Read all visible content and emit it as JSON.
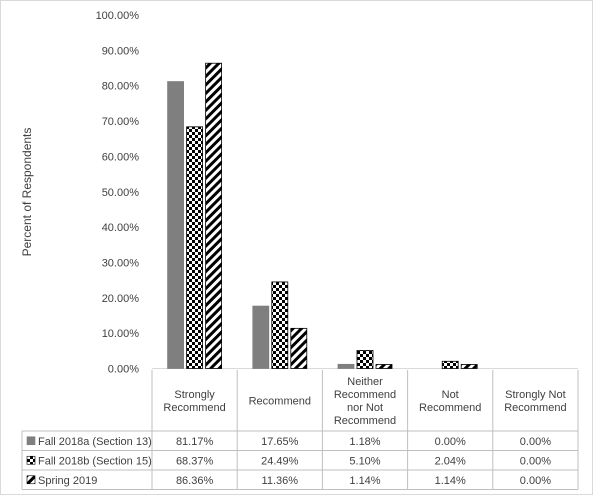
{
  "chart_data": {
    "type": "bar",
    "ylabel": "Percent of Respondents",
    "ylim": [
      0,
      100
    ],
    "y_ticks": [
      "0.00%",
      "10.00%",
      "20.00%",
      "30.00%",
      "40.00%",
      "50.00%",
      "60.00%",
      "70.00%",
      "80.00%",
      "90.00%",
      "100.00%"
    ],
    "categories": [
      [
        "Strongly",
        "Recommend"
      ],
      [
        "Recommend"
      ],
      [
        "Neither",
        "Recommend",
        "nor Not",
        "Recommend"
      ],
      [
        "Not",
        "Recommend"
      ],
      [
        "Strongly Not",
        "Recommend"
      ]
    ],
    "series": [
      {
        "name": "Fall 2018a (Section 13)",
        "pattern": "solid",
        "color": "#7f7f7f",
        "values": [
          81.17,
          17.65,
          1.18,
          0.0,
          0.0
        ],
        "labels": [
          "81.17%",
          "17.65%",
          "1.18%",
          "0.00%",
          "0.00%"
        ]
      },
      {
        "name": "Fall 2018b (Section 15)",
        "pattern": "checkerboard",
        "color": "#000000",
        "values": [
          68.37,
          24.49,
          5.1,
          2.04,
          0.0
        ],
        "labels": [
          "68.37%",
          "24.49%",
          "5.10%",
          "2.04%",
          "0.00%"
        ]
      },
      {
        "name": "Spring 2019",
        "pattern": "diagonal-stripes",
        "color": "#000000",
        "values": [
          86.36,
          11.36,
          1.14,
          1.14,
          0.0
        ],
        "labels": [
          "86.36%",
          "11.36%",
          "1.14%",
          "1.14%",
          "0.00%"
        ]
      }
    ],
    "grid": false,
    "legend": "data-table"
  }
}
